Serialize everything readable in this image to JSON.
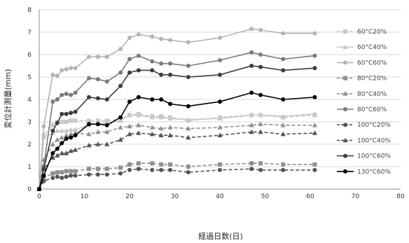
{
  "chart_data": {
    "type": "line",
    "xlabel": "経過日数(日)",
    "ylabel": "変位計測量(mm)",
    "xlim": [
      0,
      80
    ],
    "ylim": [
      0,
      8
    ],
    "xticks": [
      0,
      10,
      20,
      30,
      40,
      50,
      60,
      70,
      80
    ],
    "yticks": [
      0,
      1,
      2,
      3,
      4,
      5,
      6,
      7,
      8
    ],
    "grid": "horizontal",
    "legend_position": "right",
    "x": [
      0,
      1,
      3,
      4,
      5,
      6,
      7,
      8,
      11,
      13,
      15,
      18,
      20,
      22,
      25,
      27,
      29,
      33,
      40,
      47,
      49,
      54,
      61
    ],
    "series": [
      {
        "name": "60°C20%",
        "marker": "square",
        "dash": true,
        "color": "#c8c8c8",
        "values": [
          0,
          2.4,
          2.85,
          3.0,
          3.0,
          3.0,
          3.05,
          3.05,
          3.05,
          3.05,
          3.05,
          3.1,
          3.3,
          3.35,
          3.25,
          3.25,
          3.2,
          3.05,
          3.2,
          3.3,
          3.3,
          3.2,
          3.3
        ]
      },
      {
        "name": "60°C40%",
        "marker": "triangle",
        "dash": false,
        "color": "#c8c8c8",
        "values": [
          0,
          2.3,
          2.5,
          2.6,
          2.6,
          2.6,
          2.65,
          2.65,
          2.85,
          2.9,
          2.95,
          3.05,
          3.3,
          3.3,
          3.2,
          3.2,
          3.15,
          3.1,
          3.15,
          3.3,
          3.3,
          3.25,
          3.35
        ]
      },
      {
        "name": "60°C60%",
        "marker": "circle",
        "dash": false,
        "color": "#b4b4b4",
        "values": [
          0,
          2.8,
          5.1,
          5.05,
          5.3,
          5.35,
          5.4,
          5.4,
          5.9,
          5.9,
          5.9,
          6.25,
          6.75,
          6.9,
          6.8,
          6.7,
          6.65,
          6.55,
          6.75,
          7.15,
          7.1,
          6.95,
          6.95
        ]
      },
      {
        "name": "80°C20%",
        "marker": "square",
        "dash": true,
        "color": "#909090",
        "values": [
          0,
          0.5,
          0.7,
          0.75,
          0.75,
          0.8,
          0.8,
          0.8,
          0.9,
          0.9,
          0.9,
          0.95,
          1.1,
          1.15,
          1.15,
          1.1,
          1.1,
          1.0,
          1.1,
          1.15,
          1.15,
          1.1,
          1.1
        ]
      },
      {
        "name": "80°C40%",
        "marker": "triangle",
        "dash": true,
        "color": "#909090",
        "values": [
          0,
          1.3,
          2.0,
          2.2,
          2.3,
          2.4,
          2.45,
          2.5,
          2.45,
          2.55,
          2.55,
          2.75,
          2.8,
          2.85,
          2.75,
          2.7,
          2.75,
          2.7,
          2.75,
          2.85,
          2.9,
          2.85,
          2.85
        ]
      },
      {
        "name": "80°C60%",
        "marker": "circle",
        "dash": false,
        "color": "#7a7a7a",
        "values": [
          0,
          1.0,
          3.9,
          4.0,
          4.2,
          4.25,
          4.2,
          4.3,
          4.95,
          4.9,
          4.8,
          5.2,
          5.8,
          5.95,
          5.7,
          5.6,
          5.6,
          5.5,
          5.75,
          6.1,
          6.0,
          5.8,
          5.95
        ]
      },
      {
        "name": "100°C20%",
        "marker": "circle",
        "dash": true,
        "color": "#555555",
        "values": [
          0,
          0.35,
          0.5,
          0.55,
          0.5,
          0.55,
          0.6,
          0.6,
          0.65,
          0.65,
          0.65,
          0.7,
          0.85,
          0.9,
          0.85,
          0.85,
          0.85,
          0.75,
          0.85,
          0.9,
          0.85,
          0.85,
          0.85
        ]
      },
      {
        "name": "100°C40%",
        "marker": "triangle",
        "dash": true,
        "color": "#555555",
        "values": [
          0,
          0.9,
          1.4,
          1.5,
          1.6,
          1.6,
          1.7,
          1.75,
          1.95,
          2.0,
          2.0,
          2.2,
          2.45,
          2.5,
          2.45,
          2.4,
          2.4,
          2.3,
          2.4,
          2.55,
          2.55,
          2.45,
          2.5
        ]
      },
      {
        "name": "100°C60%",
        "marker": "circle",
        "dash": false,
        "color": "#3c3c3c",
        "values": [
          0,
          0.9,
          2.6,
          2.95,
          3.35,
          3.35,
          3.4,
          3.45,
          4.1,
          4.05,
          4.0,
          4.6,
          5.2,
          5.3,
          5.3,
          5.1,
          5.1,
          5.0,
          5.1,
          5.5,
          5.45,
          5.3,
          5.4
        ]
      },
      {
        "name": "130°C60%",
        "marker": "circle",
        "dash": false,
        "color": "#000000",
        "values": [
          0,
          0.6,
          1.6,
          1.8,
          2.05,
          2.25,
          2.3,
          2.4,
          2.9,
          2.9,
          2.85,
          3.2,
          3.9,
          4.1,
          4.0,
          4.0,
          3.8,
          3.7,
          3.9,
          4.3,
          4.2,
          4.0,
          4.1
        ]
      }
    ]
  }
}
